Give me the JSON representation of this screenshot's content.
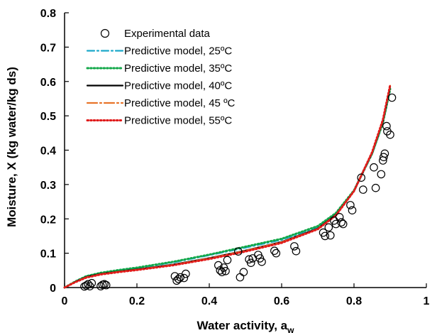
{
  "chart_data": {
    "type": "scatter",
    "xlabel": "Water activity, a",
    "xlabel_subscript": "w",
    "ylabel": "Moisture, X (kg water/kg ds)",
    "xlim": [
      0,
      1
    ],
    "ylim": [
      0,
      0.8
    ],
    "xticks": [
      0,
      0.2,
      0.4,
      0.6,
      0.8,
      1
    ],
    "yticks": [
      0,
      0.1,
      0.2,
      0.3,
      0.4,
      0.5,
      0.6,
      0.7,
      0.8
    ],
    "xtick_labels": [
      "0",
      "0.2",
      "0.4",
      "0.6",
      "0.8",
      "1"
    ],
    "ytick_labels": [
      "0",
      "0.1",
      "0.2",
      "0.3",
      "0.4",
      "0.5",
      "0.6",
      "0.7",
      "0.8"
    ],
    "grid": false,
    "legend_position": "top-left",
    "series": [
      {
        "name": "Experimental data",
        "kind": "markers",
        "marker": "open-circle",
        "color": "#000000",
        "points": [
          [
            0.055,
            0.003
          ],
          [
            0.06,
            0.006
          ],
          [
            0.065,
            0.01
          ],
          [
            0.07,
            0.004
          ],
          [
            0.075,
            0.013
          ],
          [
            0.1,
            0.004
          ],
          [
            0.105,
            0.008
          ],
          [
            0.11,
            0.01
          ],
          [
            0.115,
            0.007
          ],
          [
            0.305,
            0.033
          ],
          [
            0.31,
            0.02
          ],
          [
            0.315,
            0.025
          ],
          [
            0.32,
            0.03
          ],
          [
            0.33,
            0.028
          ],
          [
            0.335,
            0.04
          ],
          [
            0.425,
            0.065
          ],
          [
            0.43,
            0.05
          ],
          [
            0.435,
            0.045
          ],
          [
            0.44,
            0.058
          ],
          [
            0.445,
            0.048
          ],
          [
            0.45,
            0.08
          ],
          [
            0.48,
            0.105
          ],
          [
            0.485,
            0.03
          ],
          [
            0.495,
            0.045
          ],
          [
            0.51,
            0.082
          ],
          [
            0.515,
            0.072
          ],
          [
            0.52,
            0.085
          ],
          [
            0.535,
            0.095
          ],
          [
            0.54,
            0.085
          ],
          [
            0.545,
            0.075
          ],
          [
            0.58,
            0.107
          ],
          [
            0.585,
            0.1
          ],
          [
            0.635,
            0.12
          ],
          [
            0.64,
            0.106
          ],
          [
            0.715,
            0.16
          ],
          [
            0.72,
            0.15
          ],
          [
            0.73,
            0.175
          ],
          [
            0.735,
            0.152
          ],
          [
            0.745,
            0.195
          ],
          [
            0.75,
            0.185
          ],
          [
            0.76,
            0.205
          ],
          [
            0.765,
            0.19
          ],
          [
            0.77,
            0.185
          ],
          [
            0.79,
            0.24
          ],
          [
            0.795,
            0.225
          ],
          [
            0.82,
            0.32
          ],
          [
            0.825,
            0.285
          ],
          [
            0.855,
            0.35
          ],
          [
            0.86,
            0.29
          ],
          [
            0.875,
            0.33
          ],
          [
            0.88,
            0.37
          ],
          [
            0.882,
            0.38
          ],
          [
            0.885,
            0.39
          ],
          [
            0.89,
            0.47
          ],
          [
            0.892,
            0.455
          ],
          [
            0.9,
            0.445
          ],
          [
            0.905,
            0.553
          ]
        ]
      },
      {
        "name": "Predictive model, 25ºC",
        "kind": "line",
        "dash": "dash-dot",
        "color": "#1ba8c9",
        "x": [
          0,
          0.03,
          0.06,
          0.1,
          0.15,
          0.2,
          0.3,
          0.4,
          0.5,
          0.6,
          0.7,
          0.75,
          0.8,
          0.85,
          0.88,
          0.9
        ],
        "y": [
          0,
          0.018,
          0.033,
          0.042,
          0.05,
          0.057,
          0.073,
          0.094,
          0.116,
          0.139,
          0.176,
          0.214,
          0.28,
          0.388,
          0.478,
          0.575
        ]
      },
      {
        "name": "Predictive model, 35ºC",
        "kind": "line",
        "dash": "dotted",
        "color": "#13a84a",
        "x": [
          0,
          0.03,
          0.06,
          0.1,
          0.15,
          0.2,
          0.3,
          0.4,
          0.5,
          0.6,
          0.7,
          0.75,
          0.8,
          0.85,
          0.88,
          0.9
        ],
        "y": [
          0,
          0.018,
          0.033,
          0.043,
          0.051,
          0.058,
          0.075,
          0.096,
          0.119,
          0.142,
          0.179,
          0.217,
          0.283,
          0.39,
          0.48,
          0.578
        ]
      },
      {
        "name": "Predictive model, 40ºC",
        "kind": "line",
        "dash": "solid",
        "color": "#000000",
        "x": [
          0,
          0.03,
          0.06,
          0.1,
          0.15,
          0.2,
          0.3,
          0.4,
          0.5,
          0.6,
          0.7,
          0.75,
          0.8,
          0.85,
          0.88,
          0.9
        ],
        "y": [
          0,
          0.017,
          0.031,
          0.04,
          0.047,
          0.053,
          0.067,
          0.086,
          0.108,
          0.133,
          0.172,
          0.212,
          0.281,
          0.392,
          0.485,
          0.585
        ]
      },
      {
        "name": "Predictive model, 45 ºC",
        "kind": "line",
        "dash": "long-dash-dot",
        "color": "#e8742a",
        "x": [
          0,
          0.03,
          0.06,
          0.1,
          0.15,
          0.2,
          0.3,
          0.4,
          0.5,
          0.6,
          0.7,
          0.75,
          0.8,
          0.85,
          0.88,
          0.9
        ],
        "y": [
          0,
          0.017,
          0.03,
          0.039,
          0.046,
          0.052,
          0.066,
          0.085,
          0.107,
          0.132,
          0.171,
          0.211,
          0.281,
          0.393,
          0.487,
          0.588
        ]
      },
      {
        "name": "Predictive model, 55ºC",
        "kind": "line",
        "dash": "dotted",
        "color": "#e01b1b",
        "x": [
          0,
          0.03,
          0.06,
          0.1,
          0.15,
          0.2,
          0.3,
          0.4,
          0.5,
          0.6,
          0.7,
          0.75,
          0.8,
          0.85,
          0.88,
          0.9
        ],
        "y": [
          0,
          0.016,
          0.029,
          0.038,
          0.045,
          0.051,
          0.065,
          0.083,
          0.105,
          0.13,
          0.17,
          0.21,
          0.281,
          0.394,
          0.489,
          0.59
        ]
      }
    ]
  }
}
